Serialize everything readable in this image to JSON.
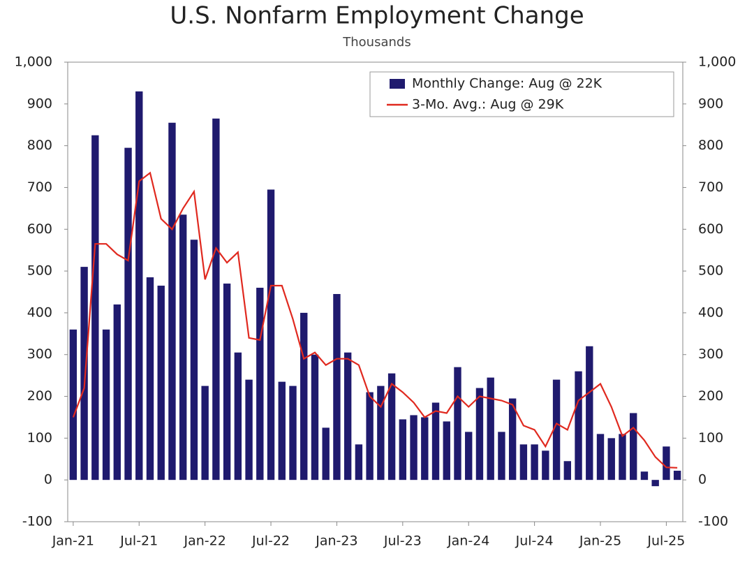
{
  "chart_data": {
    "type": "bar",
    "title": "U.S. Nonfarm Employment Change",
    "subtitle": "Thousands",
    "categories": [
      "Jan-21",
      null,
      null,
      null,
      null,
      null,
      "Jul-21",
      null,
      null,
      null,
      null,
      null,
      "Jan-22",
      null,
      null,
      null,
      null,
      null,
      "Jul-22",
      null,
      null,
      null,
      null,
      null,
      "Jan-23",
      null,
      null,
      null,
      null,
      null,
      "Jul-23",
      null,
      null,
      null,
      null,
      null,
      "Jan-24",
      null,
      null,
      null,
      null,
      null,
      "Jul-24",
      null,
      null,
      null,
      null,
      null,
      "Jan-25",
      null,
      null,
      null,
      null,
      null,
      "Jul-25",
      null
    ],
    "series": [
      {
        "name": "Monthly Change: Aug @ 22K",
        "type": "bar",
        "color": "#1f1a6e",
        "values": [
          360,
          510,
          825,
          360,
          420,
          795,
          930,
          485,
          465,
          855,
          635,
          575,
          225,
          865,
          470,
          305,
          240,
          460,
          695,
          235,
          225,
          400,
          300,
          125,
          445,
          305,
          85,
          210,
          225,
          255,
          145,
          155,
          150,
          185,
          140,
          270,
          115,
          220,
          245,
          115,
          195,
          85,
          85,
          70,
          240,
          45,
          260,
          320,
          110,
          100,
          110,
          160,
          20,
          -15,
          80,
          22
        ]
      },
      {
        "name": "3-Mo. Avg.: Aug @ 29K",
        "type": "line",
        "color": "#e0291f",
        "axis": "y2",
        "values": [
          150,
          220,
          565,
          565,
          540,
          525,
          715,
          735,
          625,
          600,
          650,
          690,
          480,
          555,
          520,
          545,
          340,
          335,
          465,
          465,
          385,
          290,
          305,
          275,
          290,
          290,
          275,
          200,
          175,
          230,
          210,
          185,
          150,
          165,
          160,
          200,
          175,
          200,
          195,
          190,
          180,
          130,
          120,
          80,
          135,
          120,
          190,
          210,
          230,
          175,
          105,
          125,
          95,
          55,
          30,
          29
        ]
      }
    ],
    "ylim": [
      -100,
      1000
    ],
    "yticks": [
      -100,
      0,
      100,
      200,
      300,
      400,
      500,
      600,
      700,
      800,
      900,
      {
        "value": 1000,
        "label": "1,000"
      }
    ],
    "y2lim": [
      -100,
      1000
    ],
    "y2ticks": [
      -100,
      0,
      100,
      200,
      300,
      400,
      500,
      600,
      700,
      800,
      900,
      {
        "value": 1000,
        "label": "1,000"
      }
    ],
    "grid": false,
    "legend": "upper right"
  }
}
